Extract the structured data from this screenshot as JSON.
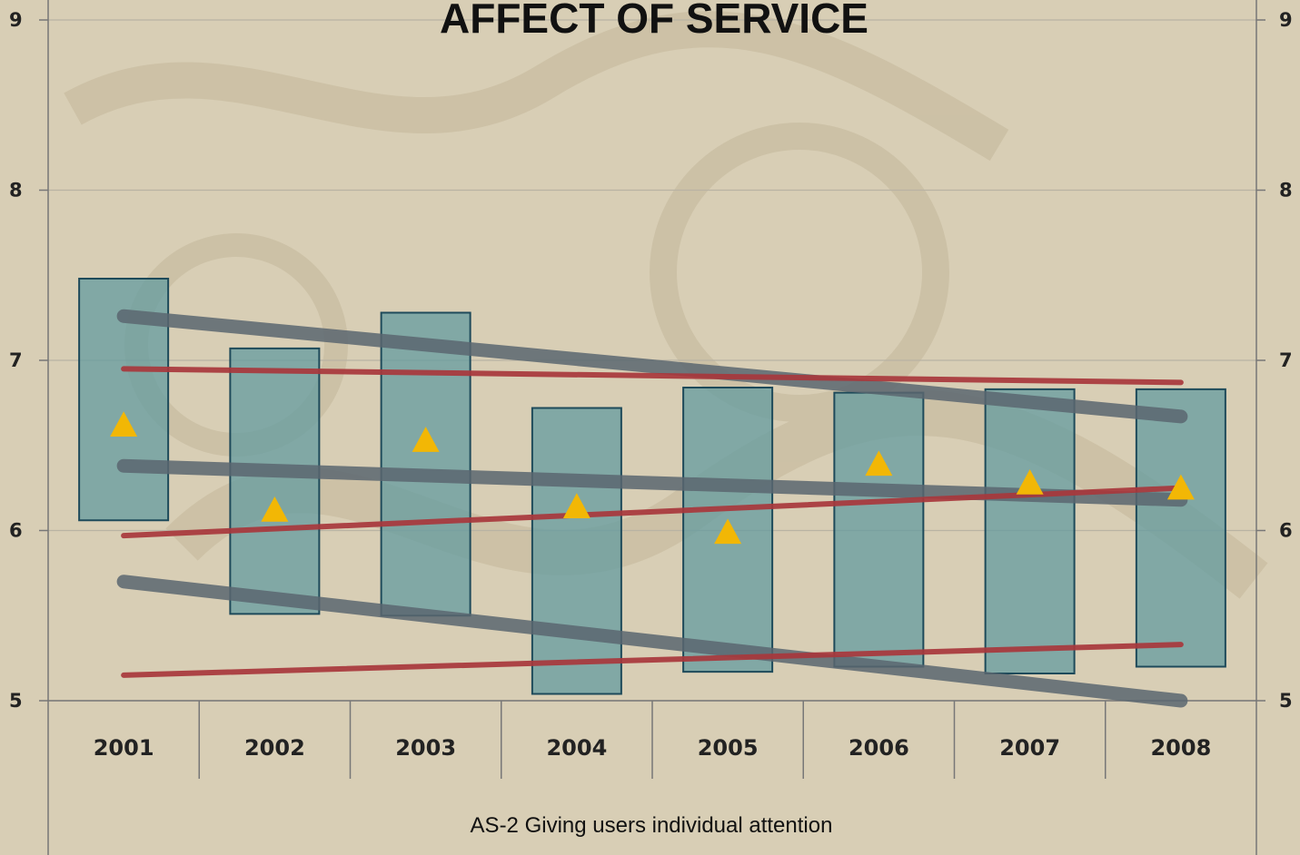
{
  "chart_data": {
    "type": "bar",
    "title": "AFFECT OF SERVICE",
    "xlabel": "AS-2 Giving users individual attention",
    "ylim": [
      5,
      9
    ],
    "yticks": [
      "5",
      "6",
      "7",
      "8",
      "9"
    ],
    "y2ticks": [
      "5",
      "6",
      "7",
      "8",
      "9"
    ],
    "categories": [
      "2001",
      "2002",
      "2003",
      "2004",
      "2005",
      "2006",
      "2007",
      "2008"
    ],
    "range_bars": {
      "low": [
        6.06,
        5.51,
        5.5,
        5.04,
        5.17,
        5.2,
        5.16,
        5.2
      ],
      "high": [
        7.48,
        7.07,
        7.28,
        6.72,
        6.84,
        6.81,
        6.83,
        6.83
      ]
    },
    "markers": [
      6.62,
      6.12,
      6.53,
      6.14,
      5.99,
      6.39,
      6.28,
      6.25
    ],
    "trend_lines": [
      {
        "group": "gray",
        "from": 7.26,
        "to": 6.67
      },
      {
        "group": "gray",
        "from": 6.38,
        "to": 6.18
      },
      {
        "group": "gray",
        "from": 5.7,
        "to": 5.0
      },
      {
        "group": "red",
        "from": 6.95,
        "to": 6.87
      },
      {
        "group": "red",
        "from": 5.97,
        "to": 6.25
      },
      {
        "group": "red",
        "from": 5.15,
        "to": 5.33
      }
    ],
    "colors": {
      "bar_fill": "#5f9aa0",
      "bar_stroke": "#1e4a5a",
      "marker": "#f2b705",
      "gray_trend": "#5b6670",
      "red_trend": "#a8373c"
    },
    "grid": true
  }
}
